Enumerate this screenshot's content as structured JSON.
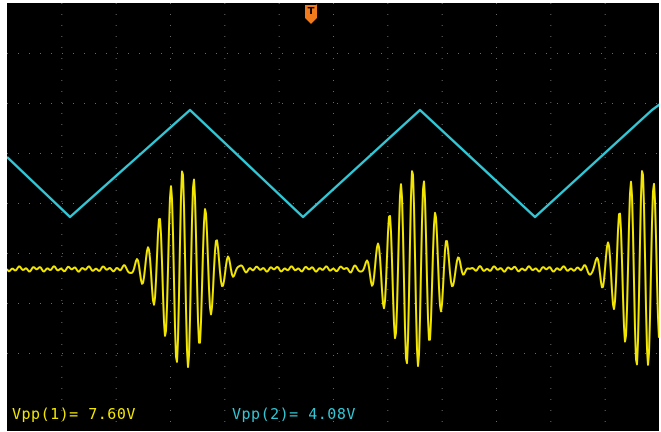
{
  "trigger": {
    "label": "T",
    "color": "#f07a1c"
  },
  "colors": {
    "screen_background": "#000000",
    "grid_dots": "#6a6a6a",
    "channel_1": "#f2e600",
    "channel_2": "#33c6d4"
  },
  "measurements": {
    "ch1_vpp": "Vpp(1)= 7.60V",
    "ch2_vpp": "Vpp(2)= 4.08V"
  },
  "traces": {
    "channel_1": {
      "shape": "amplitude-modulated burst (tone burst)",
      "vpp_volts": 7.6
    },
    "channel_2": {
      "shape": "triangle wave",
      "vpp_volts": 4.08
    }
  }
}
